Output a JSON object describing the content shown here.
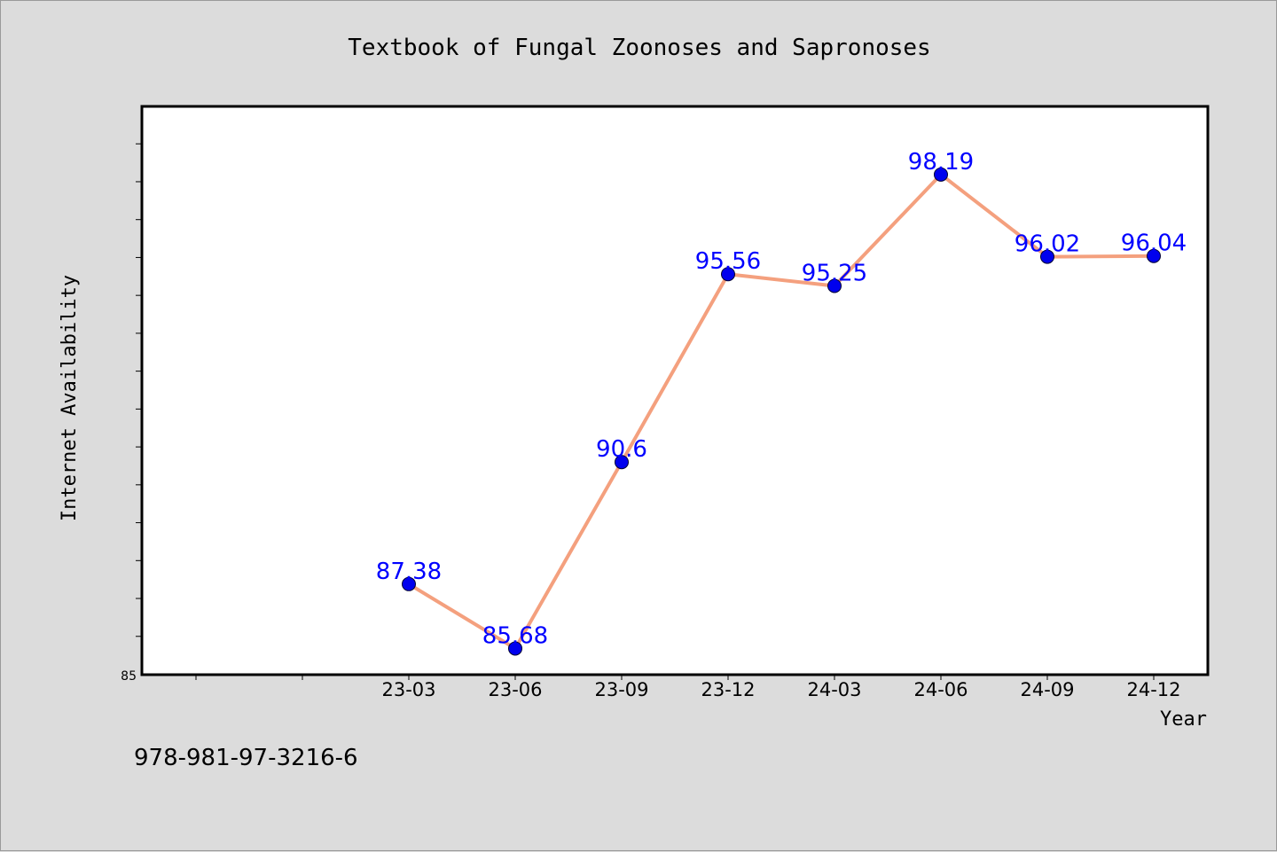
{
  "footer": {
    "isbn": "978-981-97-3216-6"
  },
  "colors": {
    "line": "#f4a07e",
    "marker": "#0000ee",
    "label": "#0000ff",
    "plot_bg": "#ffffff",
    "page_bg": "#dcdcdc"
  },
  "chart_data": {
    "type": "line",
    "title": "Textbook of Fungal Zoonoses and Sapronoses",
    "xlabel": "Year",
    "ylabel": "Internet Availability",
    "categories": [
      "23-03",
      "23-06",
      "23-09",
      "23-12",
      "24-03",
      "24-06",
      "24-09",
      "24-12"
    ],
    "series": [
      {
        "values": [
          87.38,
          85.68,
          90.6,
          95.56,
          95.25,
          98.19,
          96.02,
          96.04
        ]
      }
    ],
    "y_tick_labels": [
      "85"
    ],
    "ylim": [
      85,
      100
    ],
    "grid": false,
    "legend": "none"
  }
}
